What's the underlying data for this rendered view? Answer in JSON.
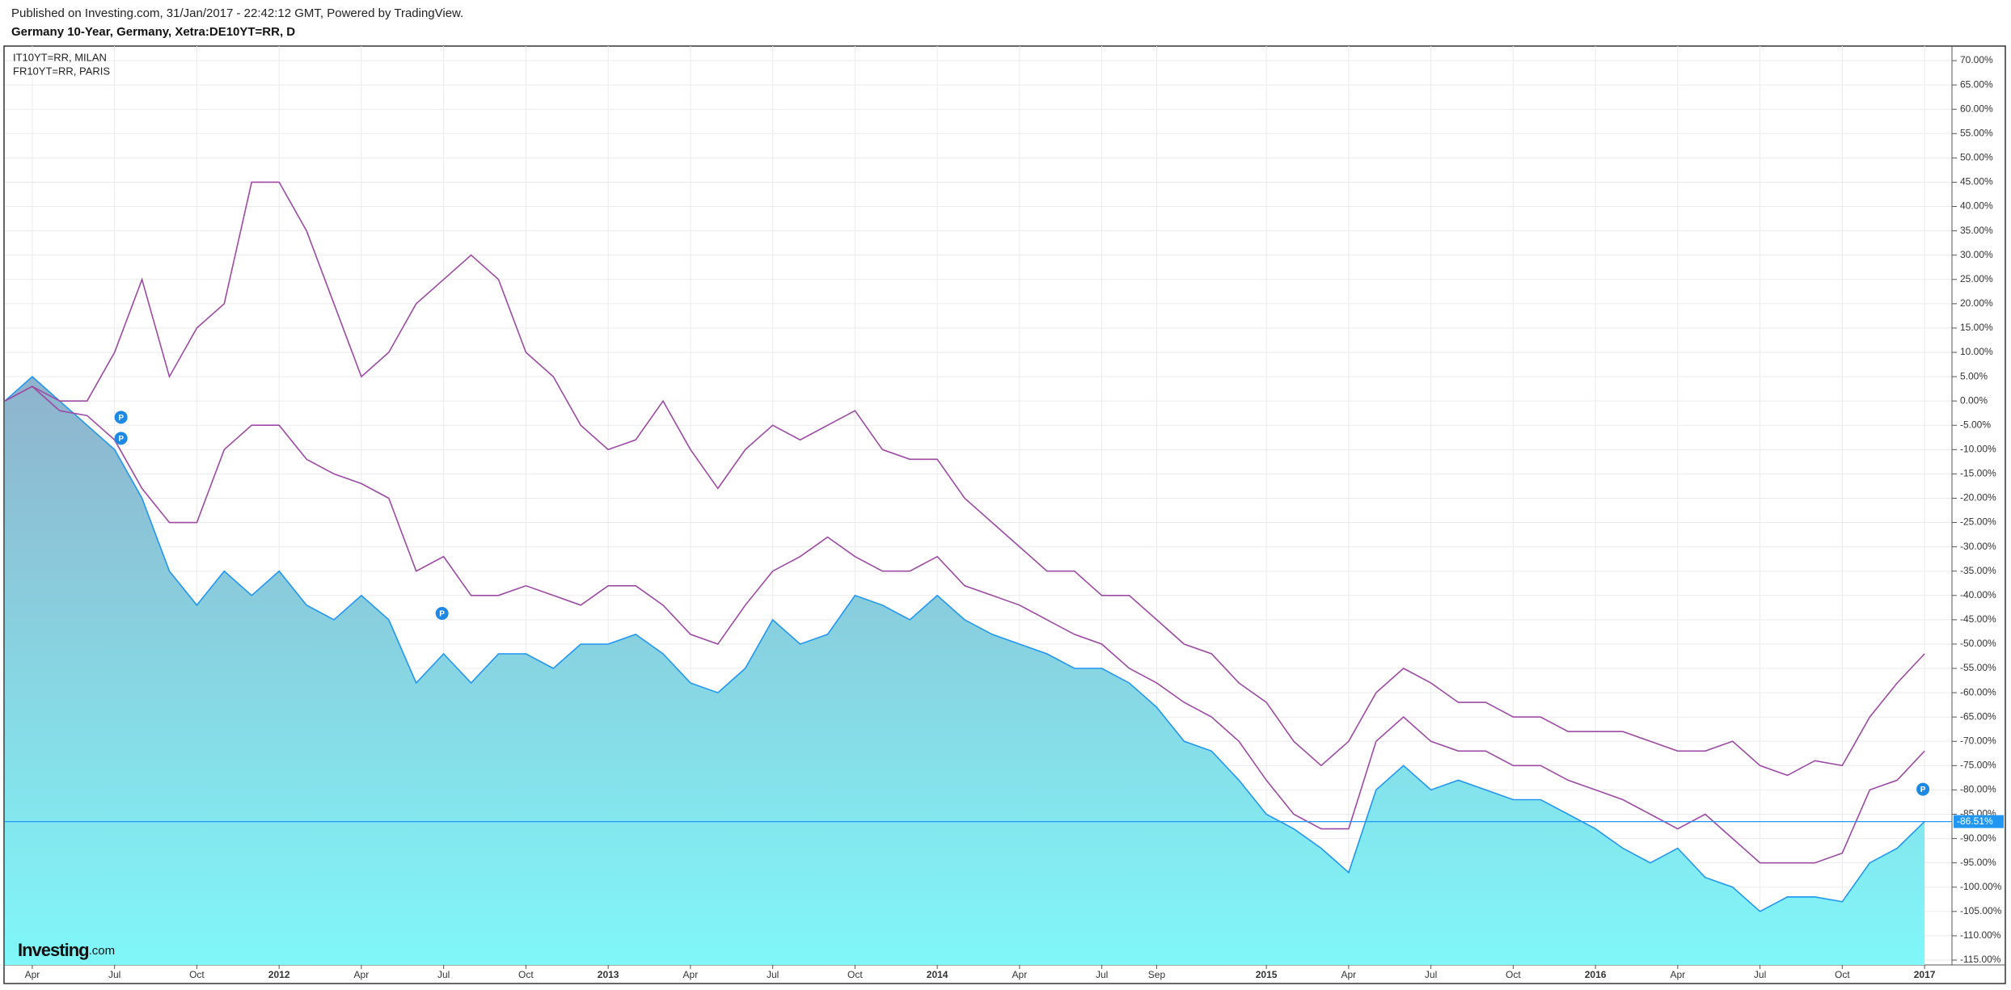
{
  "header": {
    "published": "Published on Investing.com, 31/Jan/2017 - 22:42:12 GMT, Powered by TradingView.",
    "title": "Germany 10-Year, Germany, Xetra:DE10YT=RR, D"
  },
  "logo": {
    "name": "Investing",
    "suffix": ".com"
  },
  "chart_data": {
    "type": "line",
    "x": [
      "2011-03",
      "2011-04",
      "2011-05",
      "2011-06",
      "2011-07",
      "2011-08",
      "2011-09",
      "2011-10",
      "2011-11",
      "2011-12",
      "2012-01",
      "2012-02",
      "2012-03",
      "2012-04",
      "2012-05",
      "2012-06",
      "2012-07",
      "2012-08",
      "2012-09",
      "2012-10",
      "2012-11",
      "2012-12",
      "2013-01",
      "2013-02",
      "2013-03",
      "2013-04",
      "2013-05",
      "2013-06",
      "2013-07",
      "2013-08",
      "2013-09",
      "2013-10",
      "2013-11",
      "2013-12",
      "2014-01",
      "2014-02",
      "2014-03",
      "2014-04",
      "2014-05",
      "2014-06",
      "2014-07",
      "2014-08",
      "2014-09",
      "2014-10",
      "2014-11",
      "2014-12",
      "2015-01",
      "2015-02",
      "2015-03",
      "2015-04",
      "2015-05",
      "2015-06",
      "2015-07",
      "2015-08",
      "2015-09",
      "2015-10",
      "2015-11",
      "2015-12",
      "2016-01",
      "2016-02",
      "2016-03",
      "2016-04",
      "2016-05",
      "2016-06",
      "2016-07",
      "2016-08",
      "2016-09",
      "2016-10",
      "2016-11",
      "2016-12",
      "2017-01"
    ],
    "series": [
      {
        "color": "#2196f3",
        "fill": true,
        "values": [
          0,
          5,
          0,
          -5,
          -10,
          -20,
          -35,
          -42,
          -35,
          -40,
          -35,
          -42,
          -45,
          -40,
          -45,
          -58,
          -52,
          -58,
          -52,
          -52,
          -55,
          -50,
          -50,
          -48,
          -52,
          -58,
          -60,
          -55,
          -45,
          -50,
          -48,
          -40,
          -42,
          -45,
          -40,
          -45,
          -48,
          -50,
          -52,
          -55,
          -55,
          -58,
          -63,
          -70,
          -72,
          -78,
          -85,
          -88,
          -92,
          -97,
          -80,
          -75,
          -80,
          -78,
          -80,
          -82,
          -82,
          -85,
          -88,
          -92,
          -95,
          -92,
          -98,
          -100,
          -105,
          -102,
          -102,
          -103,
          -95,
          -92,
          -86.51
        ]
      },
      {
        "name": "IT10YT=RR, MILAN",
        "color": "#9c4aa3",
        "values": [
          0,
          3,
          0,
          0,
          10,
          25,
          5,
          15,
          20,
          45,
          45,
          35,
          20,
          5,
          10,
          20,
          25,
          30,
          25,
          10,
          5,
          -5,
          -10,
          -8,
          0,
          -10,
          -18,
          -10,
          -5,
          -8,
          -5,
          -2,
          -10,
          -12,
          -12,
          -20,
          -25,
          -30,
          -35,
          -35,
          -40,
          -40,
          -45,
          -50,
          -52,
          -58,
          -62,
          -70,
          -75,
          -70,
          -60,
          -55,
          -58,
          -62,
          -62,
          -65,
          -65,
          -68,
          -68,
          -68,
          -70,
          -72,
          -72,
          -70,
          -75,
          -77,
          -74,
          -75,
          -65,
          -58,
          -52
        ]
      },
      {
        "name": "FR10YT=RR, PARIS",
        "color": "#9c4aa3",
        "values": [
          0,
          3,
          -2,
          -3,
          -8,
          -18,
          -25,
          -25,
          -10,
          -5,
          -5,
          -12,
          -15,
          -17,
          -20,
          -35,
          -32,
          -40,
          -40,
          -38,
          -40,
          -42,
          -38,
          -38,
          -42,
          -48,
          -50,
          -42,
          -35,
          -32,
          -28,
          -32,
          -35,
          -35,
          -32,
          -38,
          -40,
          -42,
          -45,
          -48,
          -50,
          -55,
          -58,
          -62,
          -65,
          -70,
          -78,
          -85,
          -88,
          -88,
          -70,
          -65,
          -70,
          -72,
          -72,
          -75,
          -75,
          -78,
          -80,
          -82,
          -85,
          -88,
          -85,
          -90,
          -95,
          -95,
          -95,
          -93,
          -80,
          -78,
          -72
        ]
      }
    ],
    "last_value": {
      "value": -86.51,
      "label": "-86.51%"
    },
    "markers": [
      {
        "x": "2011-07",
        "label": "P"
      },
      {
        "x": "2011-07",
        "label": "P"
      },
      {
        "x": "2012-07",
        "label": "P"
      },
      {
        "x": "2017-01",
        "label": "P"
      }
    ],
    "xlim": [
      "2011-03",
      "2017-02"
    ],
    "xticks": [
      {
        "value": "2011-04",
        "label": "Apr"
      },
      {
        "value": "2011-07",
        "label": "Jul"
      },
      {
        "value": "2011-10",
        "label": "Oct"
      },
      {
        "value": "2012-01",
        "label": "2012"
      },
      {
        "value": "2012-04",
        "label": "Apr"
      },
      {
        "value": "2012-07",
        "label": "Jul"
      },
      {
        "value": "2012-10",
        "label": "Oct"
      },
      {
        "value": "2013-01",
        "label": "2013"
      },
      {
        "value": "2013-04",
        "label": "Apr"
      },
      {
        "value": "2013-07",
        "label": "Jul"
      },
      {
        "value": "2013-10",
        "label": "Oct"
      },
      {
        "value": "2014-01",
        "label": "2014"
      },
      {
        "value": "2014-04",
        "label": "Apr"
      },
      {
        "value": "2014-07",
        "label": "Jul"
      },
      {
        "value": "2014-09",
        "label": "Sep"
      },
      {
        "value": "2015-01",
        "label": "2015"
      },
      {
        "value": "2015-04",
        "label": "Apr"
      },
      {
        "value": "2015-07",
        "label": "Jul"
      },
      {
        "value": "2015-10",
        "label": "Oct"
      },
      {
        "value": "2016-01",
        "label": "2016"
      },
      {
        "value": "2016-04",
        "label": "Apr"
      },
      {
        "value": "2016-07",
        "label": "Jul"
      },
      {
        "value": "2016-10",
        "label": "Oct"
      },
      {
        "value": "2017-01",
        "label": "2017"
      }
    ],
    "ylim": [
      -116,
      73
    ],
    "yticks": [
      {
        "value": 70,
        "label": "70.00%"
      },
      {
        "value": 65,
        "label": "65.00%"
      },
      {
        "value": 60,
        "label": "60.00%"
      },
      {
        "value": 55,
        "label": "55.00%"
      },
      {
        "value": 50,
        "label": "50.00%"
      },
      {
        "value": 45,
        "label": "45.00%"
      },
      {
        "value": 40,
        "label": "40.00%"
      },
      {
        "value": 35,
        "label": "35.00%"
      },
      {
        "value": 30,
        "label": "30.00%"
      },
      {
        "value": 25,
        "label": "25.00%"
      },
      {
        "value": 20,
        "label": "20.00%"
      },
      {
        "value": 15,
        "label": "15.00%"
      },
      {
        "value": 10,
        "label": "10.00%"
      },
      {
        "value": 5,
        "label": "5.00%"
      },
      {
        "value": 0,
        "label": "0.00%"
      },
      {
        "value": -5,
        "label": "-5.00%"
      },
      {
        "value": -10,
        "label": "-10.00%"
      },
      {
        "value": -15,
        "label": "-15.00%"
      },
      {
        "value": -20,
        "label": "-20.00%"
      },
      {
        "value": -25,
        "label": "-25.00%"
      },
      {
        "value": -30,
        "label": "-30.00%"
      },
      {
        "value": -35,
        "label": "-35.00%"
      },
      {
        "value": -40,
        "label": "-40.00%"
      },
      {
        "value": -45,
        "label": "-45.00%"
      },
      {
        "value": -50,
        "label": "-50.00%"
      },
      {
        "value": -55,
        "label": "-55.00%"
      },
      {
        "value": -60,
        "label": "-60.00%"
      },
      {
        "value": -65,
        "label": "-65.00%"
      },
      {
        "value": -70,
        "label": "-70.00%"
      },
      {
        "value": -75,
        "label": "-75.00%"
      },
      {
        "value": -80,
        "label": "-80.00%"
      },
      {
        "value": -85,
        "label": "-85.00%"
      },
      {
        "value": -90,
        "label": "-90.00%"
      },
      {
        "value": -95,
        "label": "-95.00%"
      },
      {
        "value": -100,
        "label": "-100.00%"
      },
      {
        "value": -105,
        "label": "-105.00%"
      },
      {
        "value": -110,
        "label": "-110.00%"
      },
      {
        "value": -115,
        "label": "-115.00%"
      }
    ],
    "grid": true
  }
}
